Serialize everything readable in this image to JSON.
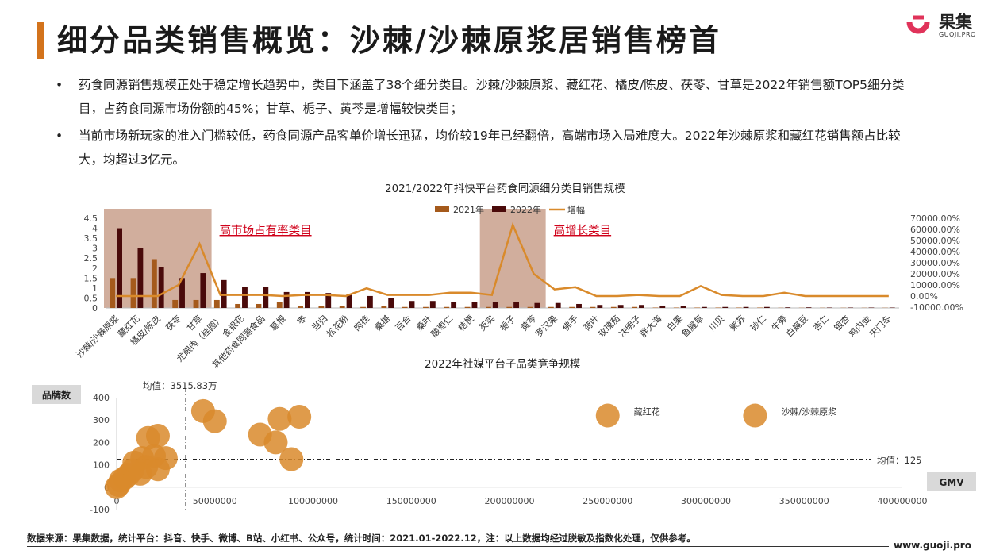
{
  "page_title": "细分品类销售概览：沙棘/沙棘原浆居销售榜首",
  "logo": {
    "name": "果集",
    "sub": "GUOJI.PRO"
  },
  "bullets": [
    "药食同源销售规模正处于稳定增长趋势中，类目下涵盖了38个细分类目。沙棘/沙棘原浆、藏红花、橘皮/陈皮、茯苓、甘草是2022年销售额TOP5细分类目，占药食同源市场份额的45%；甘草、栀子、黄芩是增幅较快类目；",
    "当前市场新玩家的准入门槛较低，药食同源产品客单价增长迅猛，均价较19年已经翻倍，高端市场入局难度大。2022年沙棘原浆和藏红花销售额占比较大，均超过3亿元。"
  ],
  "colors": {
    "accent": "#d3731c",
    "y2021": "#a55a1c",
    "y2022": "#4a0a0a",
    "growth": "#d98a2b",
    "bubble": "#d98a2b",
    "highlight": "#c9a08c",
    "annotation": "#d0021b"
  },
  "chart_data": [
    {
      "type": "bar",
      "title": "2021/2022年抖快平台药食同源细分类目销售规模",
      "categories": [
        "沙棘/沙棘原浆",
        "藏红花",
        "橘皮/陈皮",
        "茯苓",
        "甘草",
        "龙眼肉（桂圆）",
        "金银花",
        "其他药食同源食品",
        "葛根",
        "枣",
        "当归",
        "松花粉",
        "肉桂",
        "桑椹",
        "百合",
        "桑叶",
        "酸枣仁",
        "桔梗",
        "芡实",
        "栀子",
        "黄芩",
        "罗汉果",
        "佛手",
        "荷叶",
        "玫瑰茄",
        "决明子",
        "胖大海",
        "白果",
        "鱼腥草",
        "川贝",
        "紫苏",
        "砂仁",
        "牛蒡",
        "白扁豆",
        "杏仁",
        "银杏",
        "鸡内金",
        "天门冬"
      ],
      "series": [
        {
          "name": "2021年",
          "axis": "left",
          "values": [
            1.5,
            1.5,
            2.45,
            0.4,
            0.4,
            0.4,
            0.2,
            0.2,
            0.3,
            0.1,
            0.1,
            0.1,
            0.05,
            0.1,
            0.05,
            0.05,
            0.05,
            0.05,
            0.05,
            0.05,
            0.05,
            0.05,
            0.05,
            0.05,
            0.05,
            0.05,
            0.02,
            0.02,
            0.02,
            0.02,
            0.02,
            0.02,
            0.01,
            0.01,
            0.01,
            0.01,
            0.01,
            0.01
          ]
        },
        {
          "name": "2022年",
          "axis": "left",
          "values": [
            4.0,
            3.0,
            2.05,
            1.5,
            1.75,
            1.4,
            1.05,
            1.05,
            0.8,
            0.8,
            0.75,
            0.7,
            0.6,
            0.5,
            0.35,
            0.35,
            0.3,
            0.3,
            0.3,
            0.3,
            0.25,
            0.25,
            0.2,
            0.15,
            0.15,
            0.15,
            0.12,
            0.1,
            0.05,
            0.05,
            0.05,
            0.05,
            0.03,
            0.03,
            0.02,
            0.02,
            0.02,
            0.02
          ]
        },
        {
          "name": "增幅",
          "axis": "right",
          "type": "line",
          "values": [
            0,
            0,
            0,
            10000,
            47000,
            1000,
            1000,
            1000,
            0,
            1000,
            1000,
            0,
            7000,
            1000,
            1000,
            1000,
            3000,
            3000,
            1000,
            64000,
            20000,
            6000,
            8000,
            0,
            0,
            1000,
            0,
            0,
            9000,
            1000,
            0,
            0,
            3000,
            0,
            0,
            0,
            0,
            0
          ]
        }
      ],
      "ylim_left": [
        0,
        4.5
      ],
      "ytick_left": [
        "0",
        "0.5",
        "1",
        "1.5",
        "2",
        "2.5",
        "3",
        "3.5",
        "4",
        "4.5"
      ],
      "ylim_right": [
        -10000,
        70000
      ],
      "ytick_right": [
        "-10000.00%",
        "0.00%",
        "10000.00%",
        "20000.00%",
        "30000.00%",
        "40000.00%",
        "50000.00%",
        "60000.00%",
        "70000.00%"
      ],
      "legend": "top",
      "highlights": [
        {
          "label": "高市场占有率类目",
          "from": "沙棘/沙棘原浆",
          "to": "甘草"
        },
        {
          "label": "高增长类目",
          "from": "芡实",
          "to": "黄芩"
        }
      ]
    },
    {
      "type": "scatter",
      "title": "2022年社媒平台子品类竞争规模",
      "xlabel": "GMV",
      "ylabel": "品牌数",
      "xlim": [
        -2000000,
        400000000
      ],
      "ylim": [
        -100,
        400
      ],
      "xtick": [
        "0",
        "50000000",
        "100000000",
        "150000000",
        "200000000",
        "250000000",
        "300000000",
        "350000000",
        "400000000"
      ],
      "ytick": [
        "-100",
        "0",
        "100",
        "200",
        "300",
        "400"
      ],
      "mean_x_label": "均值：3515.83万",
      "mean_x": 35158300,
      "mean_y_label": "均值：125",
      "mean_y": 125,
      "points": [
        {
          "x": 250000000,
          "y": 320,
          "label": "藏红花"
        },
        {
          "x": 325000000,
          "y": 320,
          "label": "沙棘/沙棘原浆"
        },
        {
          "x": 44000000,
          "y": 340
        },
        {
          "x": 50000000,
          "y": 295
        },
        {
          "x": 73000000,
          "y": 235
        },
        {
          "x": 81000000,
          "y": 200
        },
        {
          "x": 83000000,
          "y": 305
        },
        {
          "x": 93000000,
          "y": 315
        },
        {
          "x": 89000000,
          "y": 125
        },
        {
          "x": 16000000,
          "y": 220
        },
        {
          "x": 21000000,
          "y": 230
        },
        {
          "x": 25000000,
          "y": 130
        },
        {
          "x": 19000000,
          "y": 140
        },
        {
          "x": 13000000,
          "y": 130
        },
        {
          "x": 9000000,
          "y": 110
        },
        {
          "x": 8000000,
          "y": 75
        },
        {
          "x": 6000000,
          "y": 55
        },
        {
          "x": 4000000,
          "y": 40
        },
        {
          "x": 2000000,
          "y": 30
        },
        {
          "x": 1000000,
          "y": 10
        },
        {
          "x": 15000000,
          "y": 90
        },
        {
          "x": 12000000,
          "y": 60
        },
        {
          "x": 21000000,
          "y": 80
        },
        {
          "x": 0,
          "y": 0
        }
      ]
    }
  ],
  "footnote": "数据来源：果集数据，统计平台：抖音、快手、微博、B站、小红书、公众号，统计时间：2021.01-2022.12，注：以上数据均经过脱敏及指数化处理，仅供参考。",
  "website": "www.guoji.pro"
}
